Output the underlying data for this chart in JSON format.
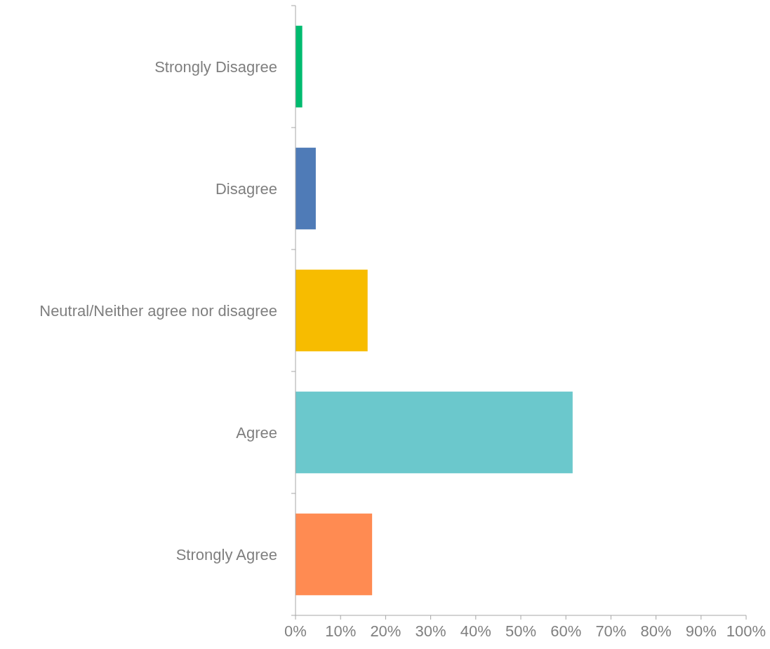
{
  "chart_data": {
    "type": "bar",
    "orientation": "horizontal",
    "categories": [
      "Strongly Disagree",
      "Disagree",
      "Neutral/Neither agree nor disagree",
      "Agree",
      "Strongly Agree"
    ],
    "values": [
      1.5,
      4.5,
      16,
      61.5,
      17
    ],
    "colors": [
      "#00bb6f",
      "#4f7bb7",
      "#f7bc00",
      "#6bc8cc",
      "#ff8b52"
    ],
    "xlim": [
      0,
      100
    ],
    "xticks": [
      {
        "value": 0,
        "label": "0%"
      },
      {
        "value": 10,
        "label": "10%"
      },
      {
        "value": 20,
        "label": "20%"
      },
      {
        "value": 30,
        "label": "30%"
      },
      {
        "value": 40,
        "label": "40%"
      },
      {
        "value": 50,
        "label": "50%"
      },
      {
        "value": 60,
        "label": "60%"
      },
      {
        "value": 70,
        "label": "70%"
      },
      {
        "value": 80,
        "label": "80%"
      },
      {
        "value": 90,
        "label": "90%"
      },
      {
        "value": 100,
        "label": "100%"
      }
    ],
    "grid": false
  }
}
